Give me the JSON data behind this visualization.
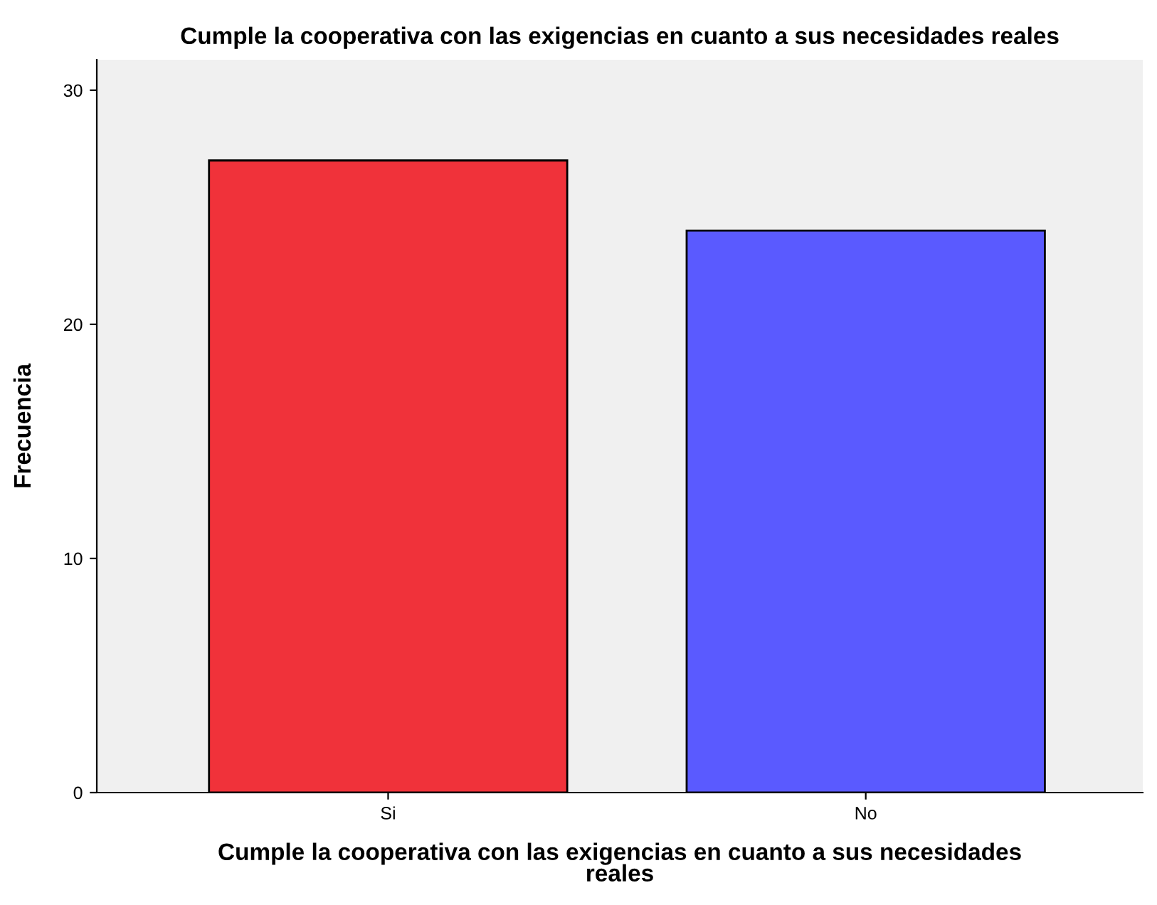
{
  "chart_data": {
    "type": "bar",
    "title": "Cumple la cooperativa con las exigencias en cuanto a sus necesidades reales",
    "xlabel": "Cumple la cooperativa con las exigencias en cuanto a sus necesidades reales",
    "ylabel": "Frecuencia",
    "categories": [
      "Si",
      "No"
    ],
    "values": [
      27,
      24
    ],
    "colors": [
      "#f0323a",
      "#5a5aff"
    ],
    "ylim": [
      0,
      31.3
    ],
    "yticks": [
      0,
      10,
      20,
      30
    ],
    "grid": false
  }
}
